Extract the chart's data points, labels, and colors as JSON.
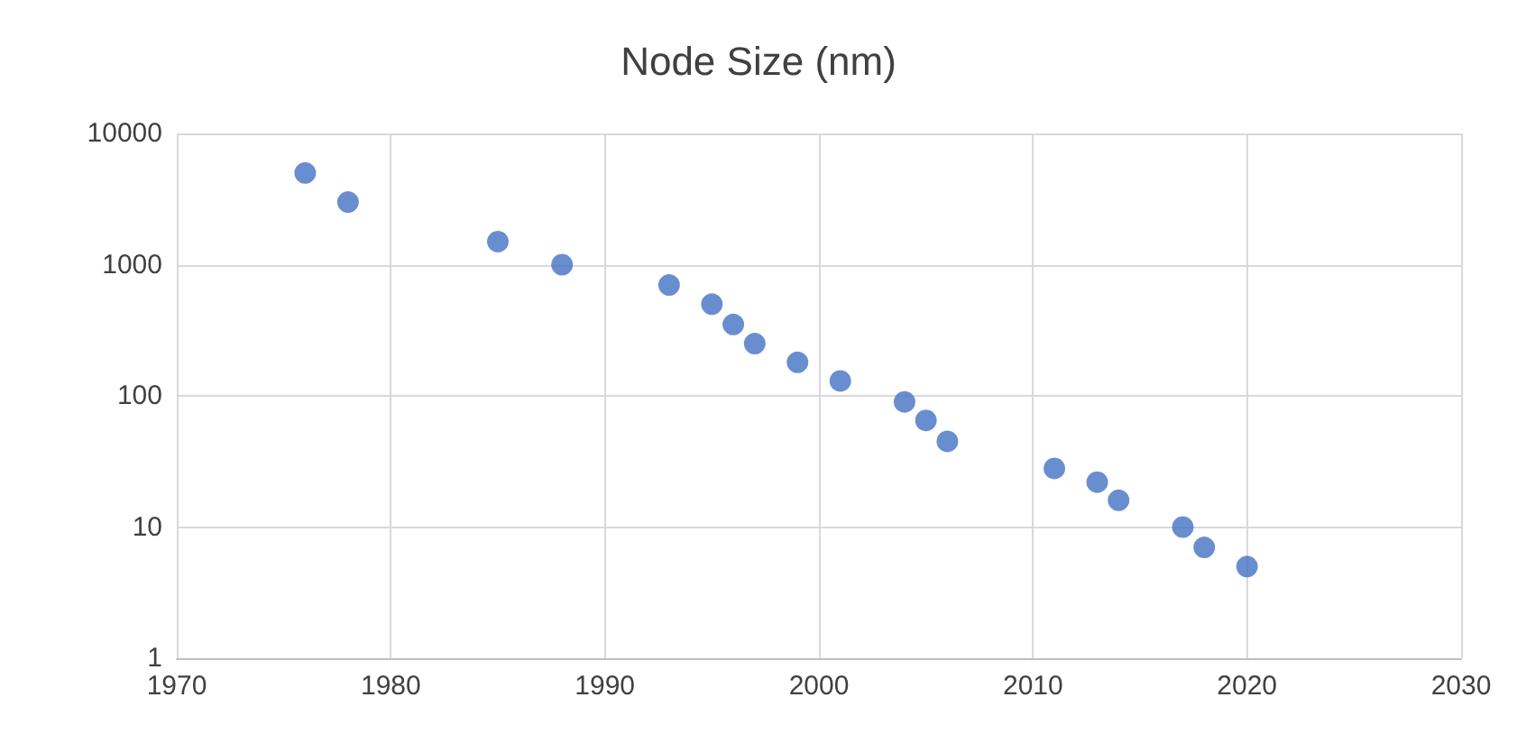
{
  "chart_data": {
    "type": "scatter",
    "title": "Node Size (nm)",
    "x": [
      1976,
      1978,
      1985,
      1988,
      1993,
      1995,
      1996,
      1997,
      1999,
      2001,
      2004,
      2005,
      2006,
      2011,
      2013,
      2014,
      2017,
      2018,
      2020
    ],
    "series": [
      {
        "color": "#4472c4",
        "values": [
          5000,
          3000,
          1500,
          1000,
          700,
          500,
          350,
          250,
          180,
          130,
          90,
          65,
          45,
          28,
          22,
          16,
          10,
          7,
          5
        ]
      }
    ],
    "xlim": [
      1970,
      2030
    ],
    "xticks": [
      1970,
      1980,
      1990,
      2000,
      2010,
      2020,
      2030
    ],
    "ylim": [
      1,
      10000
    ],
    "yticks": [
      1,
      10,
      100,
      1000,
      10000
    ],
    "log": "y",
    "grid": true,
    "marker": "circle"
  }
}
